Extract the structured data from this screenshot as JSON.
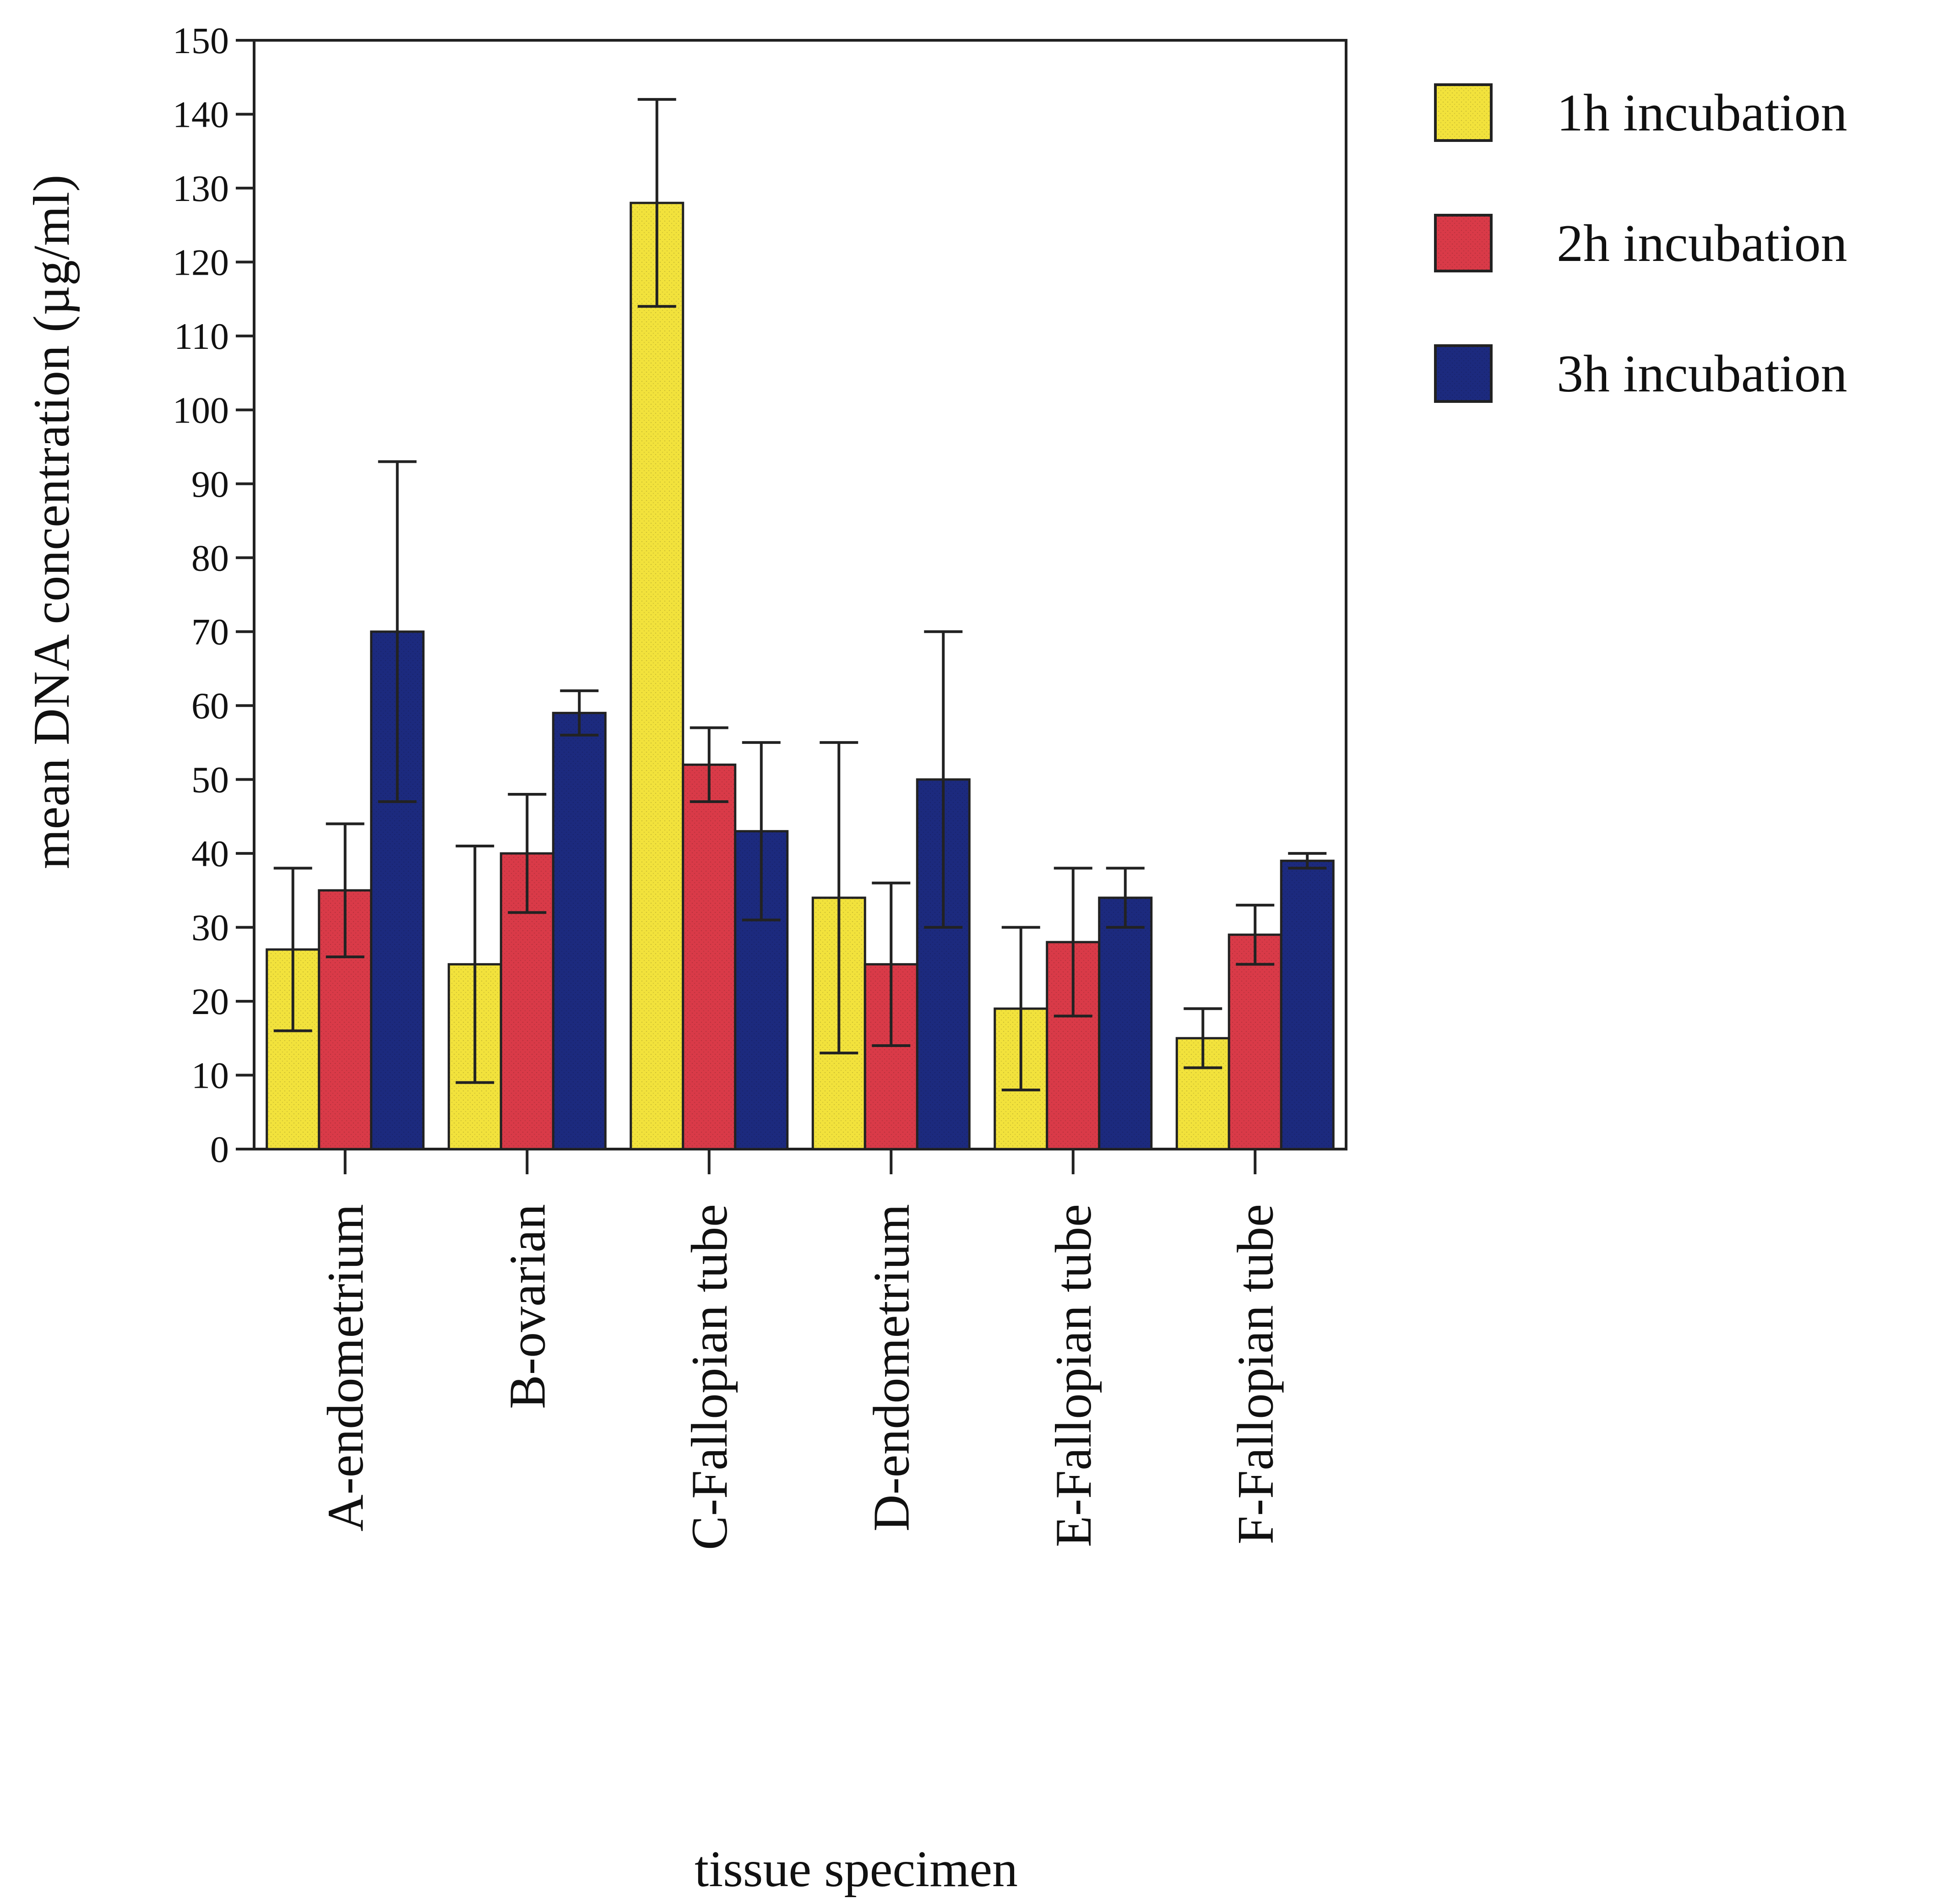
{
  "chart_data": {
    "type": "bar",
    "title": "",
    "xlabel": "tissue specimen",
    "ylabel": "mean DNA concentration  (µg/ml)",
    "ylim": [
      0,
      150
    ],
    "yticks": [
      0,
      10,
      20,
      30,
      40,
      50,
      60,
      70,
      80,
      90,
      100,
      110,
      120,
      130,
      140,
      150
    ],
    "categories": [
      "A-endometrium",
      "B-ovarian",
      "C-Fallopian tube",
      "D-endometrium",
      "E-Fallopian tube",
      "F-Fallopian tube"
    ],
    "series": [
      {
        "name": "1h incubation",
        "color": "#f2e23c",
        "values": [
          27,
          25,
          128,
          34,
          19,
          15
        ],
        "errors": [
          11,
          16,
          14,
          21,
          11,
          4
        ]
      },
      {
        "name": "2h incubation",
        "color": "#d93a48",
        "values": [
          35,
          40,
          52,
          25,
          28,
          29
        ],
        "errors": [
          9,
          8,
          5,
          11,
          10,
          4
        ]
      },
      {
        "name": "3h incubation",
        "color": "#1c2a7e",
        "values": [
          70,
          59,
          43,
          50,
          34,
          39
        ],
        "errors": [
          23,
          3,
          12,
          20,
          4,
          1
        ]
      }
    ],
    "legend_position": "top-right",
    "grid": false
  }
}
